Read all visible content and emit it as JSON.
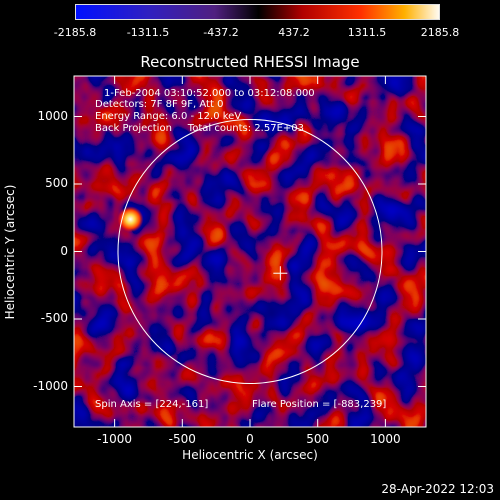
{
  "colorbar": {
    "ticks": [
      "-2185.8",
      "-1311.5",
      "-437.2",
      "437.2",
      "1311.5",
      "2185.8"
    ],
    "min": -2185.8,
    "max": 2185.8
  },
  "chart_data": {
    "type": "heatmap",
    "title": "Reconstructed RHESSI Image",
    "xlabel": "Heliocentric X (arcsec)",
    "ylabel": "Heliocentric Y (arcsec)",
    "xlim": [
      -1300,
      1300
    ],
    "ylim": [
      -1300,
      1300
    ],
    "x_ticks": [
      "-1000",
      "-500",
      "0",
      "500",
      "1000"
    ],
    "y_ticks": [
      "1000",
      "500",
      "0",
      "-500",
      "-1000"
    ],
    "solar_limb_radius_arcsec": 975,
    "spin_axis": [
      224,
      -161
    ],
    "flare_position": [
      -883,
      239
    ],
    "info_lines": [
      "1-Feb-2004 03:10:52.000 to 03:12:08.000",
      "Detectors: 7F 8F 9F, Att 0",
      "Energy Range: 6.0 - 12.0 keV",
      "Back Projection     Total counts: 2.57E+03"
    ],
    "footer_left": "Spin Axis = [224,-161]",
    "footer_right": "Flare Position = [-883,239]"
  },
  "timestamp": "28-Apr-2022 12:03"
}
